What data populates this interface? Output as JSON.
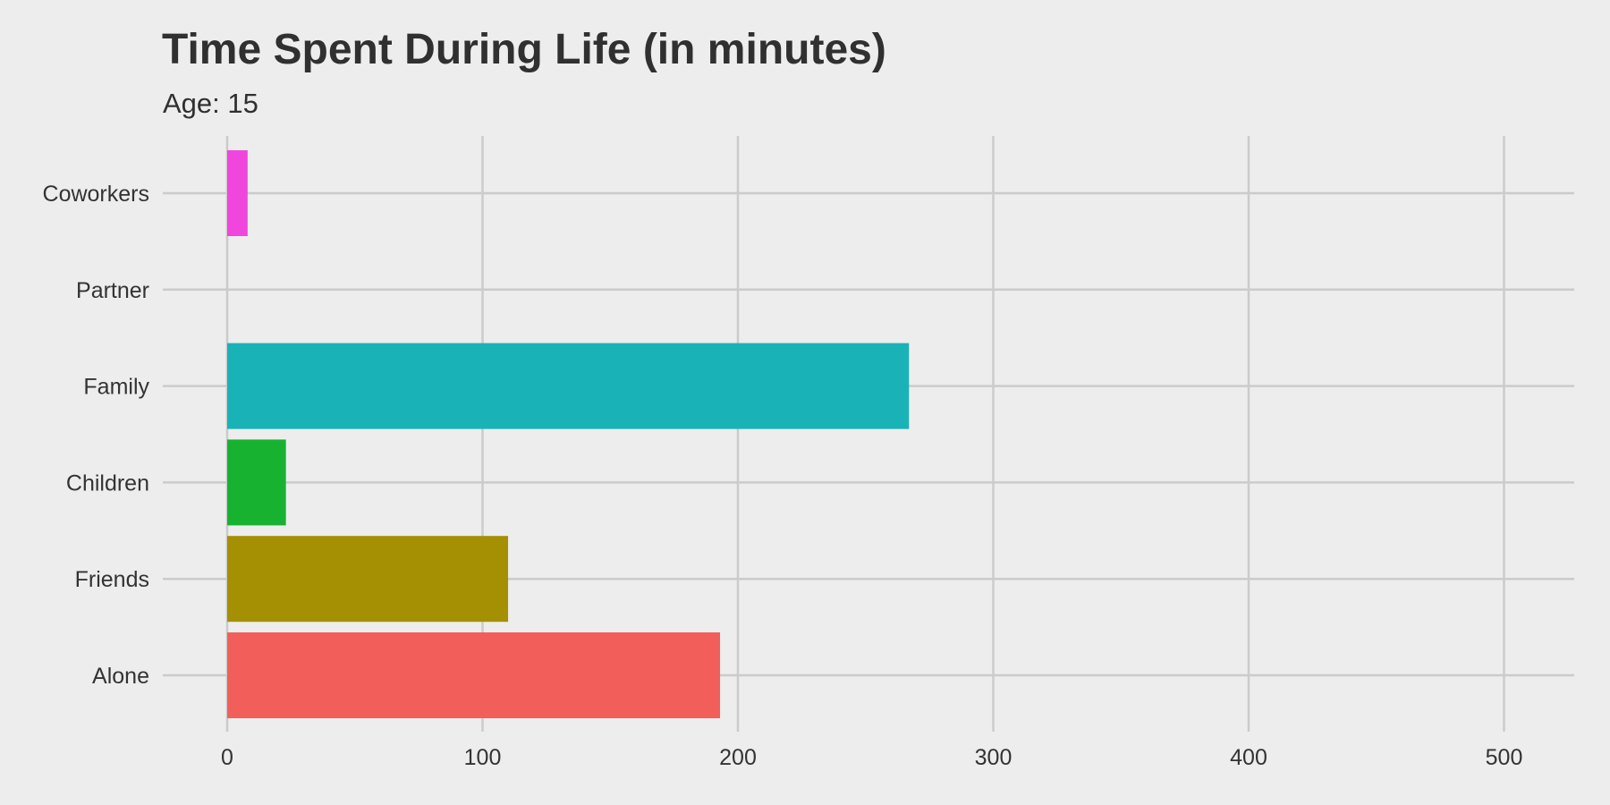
{
  "chart_data": {
    "type": "bar",
    "orientation": "horizontal",
    "title": "Time Spent During Life (in minutes)",
    "subtitle": "Age: 15",
    "xlabel": "",
    "ylabel": "",
    "categories": [
      "Coworkers",
      "Partner",
      "Family",
      "Children",
      "Friends",
      "Alone"
    ],
    "values": [
      8,
      0,
      267,
      23,
      110,
      193
    ],
    "colors": [
      "#f046dd",
      "#b7a10a",
      "#19b2b6",
      "#18b231",
      "#a58f02",
      "#f25f5b"
    ],
    "xlim": [
      -25,
      528
    ],
    "xticks": [
      0,
      100,
      200,
      300,
      400,
      500
    ],
    "xtick_labels": [
      "0",
      "100",
      "200",
      "300",
      "400",
      "500"
    ],
    "grid": true,
    "legend": "none",
    "background": "#ededed",
    "grid_color": "#cbcbcb"
  }
}
